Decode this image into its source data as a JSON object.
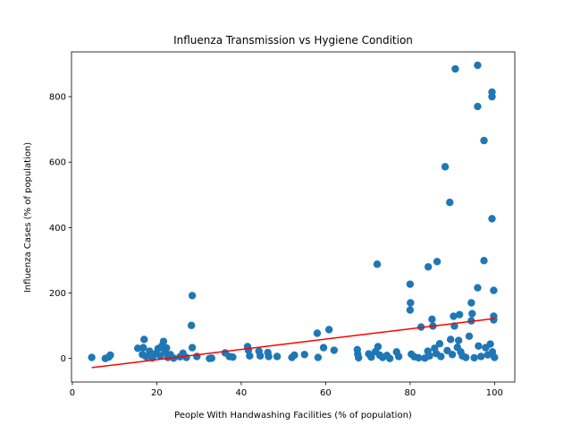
{
  "chart_data": {
    "type": "scatter",
    "title": "Influenza Transmission vs Hygiene Condition",
    "xlabel": "People With Handwashing Facilities (% of population)",
    "ylabel": "Influenza Cases (% of population)",
    "xlim": [
      -0.2,
      104.8
    ],
    "ylim": [
      -72,
      937
    ],
    "xticks": [
      0,
      20,
      40,
      60,
      80,
      100
    ],
    "yticks": [
      0,
      200,
      400,
      600,
      800
    ],
    "series": [
      {
        "type": "scatter",
        "color": "#1f77b4",
        "x": [
          4.6,
          7.8,
          8.6,
          9.0,
          15.5,
          16.8,
          17.0,
          16.6,
          17.5,
          18.3,
          19.0,
          19.8,
          20.3,
          20.8,
          21.2,
          21.6,
          21.9,
          22.3,
          22.6,
          23.2,
          24.0,
          25.5,
          26.2,
          27.0,
          28.2,
          28.4,
          28.4,
          29.5,
          32.5,
          33.0,
          36.2,
          37.2,
          38.0,
          41.5,
          41.7,
          42.0,
          44.2,
          44.5,
          46.3,
          46.5,
          48.5,
          52.0,
          52.6,
          55.0,
          58.0,
          58.2,
          59.5,
          60.8,
          62.0,
          67.5,
          67.6,
          67.8,
          70.2,
          70.8,
          71.8,
          72.2,
          72.4,
          72.8,
          73.5,
          74.5,
          75.2,
          76.8,
          77.3,
          80.0,
          80.1,
          80.0,
          80.3,
          81.0,
          82.0,
          82.6,
          83.5,
          84.2,
          84.3,
          84.6,
          85.2,
          85.4,
          85.8,
          86.2,
          86.4,
          87.0,
          87.3,
          88.3,
          88.8,
          89.4,
          89.6,
          90.0,
          90.3,
          90.5,
          90.7,
          91.2,
          91.5,
          91.7,
          92.0,
          92.4,
          93.2,
          94.0,
          94.5,
          94.7,
          94.5,
          95.2,
          96.0,
          96.0,
          96.0,
          96.2,
          96.8,
          97.5,
          97.5,
          97.9,
          98.4,
          99.0,
          99.4,
          99.4,
          99.4,
          99.8,
          99.8,
          99.8,
          99.5,
          100.0
        ],
        "values": [
          3,
          0,
          4,
          10,
          31,
          33,
          58,
          12,
          5,
          22,
          2,
          15,
          30,
          8,
          38,
          52,
          20,
          32,
          3,
          12,
          1,
          5,
          16,
          3,
          101,
          192,
          33,
          6,
          0,
          1,
          17,
          6,
          4,
          36,
          25,
          8,
          22,
          8,
          18,
          6,
          6,
          3,
          10,
          12,
          77,
          3,
          33,
          88,
          25,
          27,
          13,
          2,
          14,
          4,
          21,
          288,
          36,
          10,
          3,
          9,
          0,
          20,
          6,
          227,
          170,
          148,
          13,
          5,
          2,
          96,
          1,
          22,
          280,
          8,
          120,
          99,
          31,
          15,
          296,
          45,
          6,
          586,
          24,
          477,
          58,
          12,
          129,
          99,
          885,
          34,
          55,
          134,
          20,
          8,
          3,
          68,
          170,
          137,
          115,
          2,
          896,
          770,
          216,
          38,
          6,
          666,
          299,
          33,
          11,
          44,
          814,
          800,
          427,
          208,
          129,
          118,
          20,
          3
        ]
      },
      {
        "type": "line",
        "color": "#ff0000",
        "x": [
          4.6,
          100
        ],
        "values": [
          -28,
          122
        ]
      }
    ]
  }
}
